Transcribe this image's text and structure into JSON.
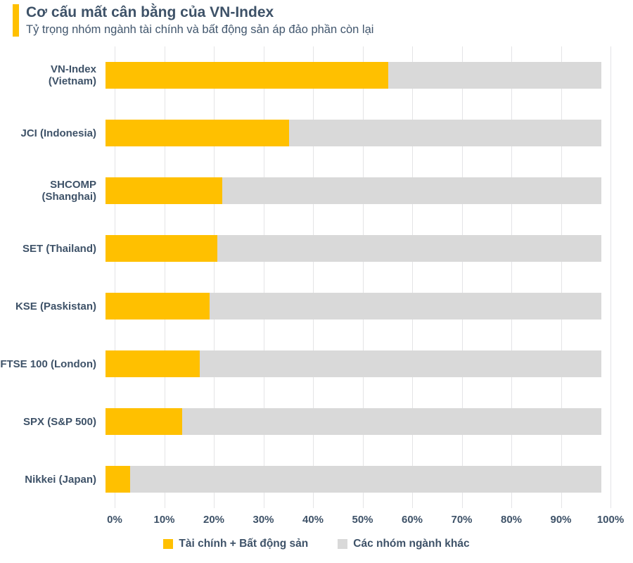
{
  "header": {
    "title": "Cơ cấu mất cân bằng của VN-Index",
    "subtitle": "Tỷ trọng nhóm ngành tài chính và bất động sản áp đảo phần còn lại"
  },
  "colors": {
    "accent": "#FFC000",
    "finance_series": "#FFC000",
    "other_series": "#D9D9D9",
    "text": "#3E5268",
    "gridline": "#E4E4E6"
  },
  "chart_data": {
    "type": "bar",
    "orientation": "horizontal",
    "stacked": true,
    "title": "Cơ cấu mất cân bằng của VN-Index",
    "subtitle": "Tỷ trọng nhóm ngành tài chính và bất động sản áp đảo phần còn lại",
    "categories": [
      "VN-Index (Vietnam)",
      "JCI (Indonesia)",
      "SHCOMP (Shanghai)",
      "SET (Thailand)",
      "KSE (Paskistan)",
      "FTSE 100 (London)",
      "SPX (S&P 500)",
      "Nikkei (Japan)"
    ],
    "series": [
      {
        "name": "Tài chính + Bất động sản",
        "color": "#FFC000",
        "values": [
          57,
          37,
          23.5,
          22.5,
          21,
          19,
          15.5,
          5
        ]
      },
      {
        "name": "Các nhóm ngành khác",
        "color": "#D9D9D9",
        "values": [
          43,
          63,
          76.5,
          77.5,
          79,
          81,
          84.5,
          95
        ]
      }
    ],
    "xlabel": "",
    "ylabel": "",
    "xlim": [
      0,
      100
    ],
    "x_ticks": [
      "0%",
      "10%",
      "20%",
      "30%",
      "40%",
      "50%",
      "60%",
      "70%",
      "80%",
      "90%",
      "100%"
    ],
    "grid": "vertical",
    "legend_position": "bottom"
  }
}
